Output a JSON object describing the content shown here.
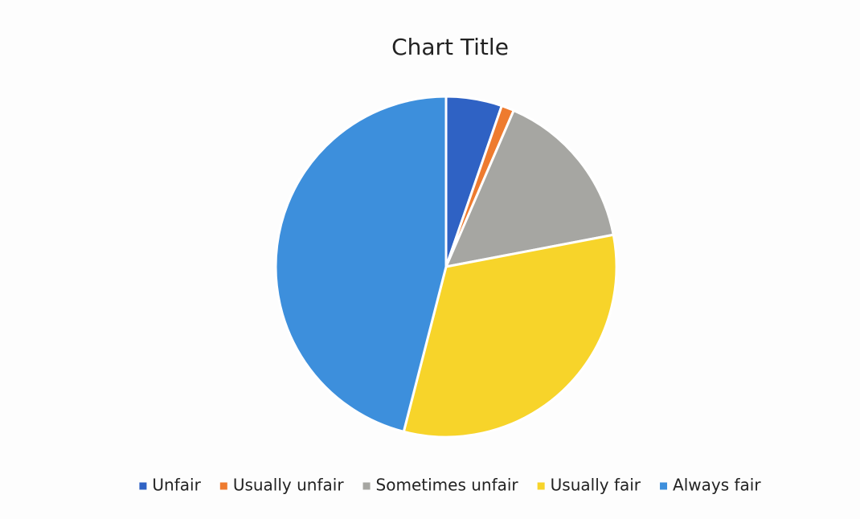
{
  "chart_data": {
    "type": "pie",
    "title": "Chart Title",
    "categories": [
      "Unfair",
      "Usually unfair",
      "Sometimes unfair",
      "Usually fair",
      "Always fair"
    ],
    "values": [
      5.3,
      1.2,
      15.5,
      32,
      46
    ],
    "colors": [
      "#2f62c4",
      "#ee7b2f",
      "#a6a6a2",
      "#f7d42a",
      "#3d8fdc"
    ],
    "legend": "bottom"
  }
}
